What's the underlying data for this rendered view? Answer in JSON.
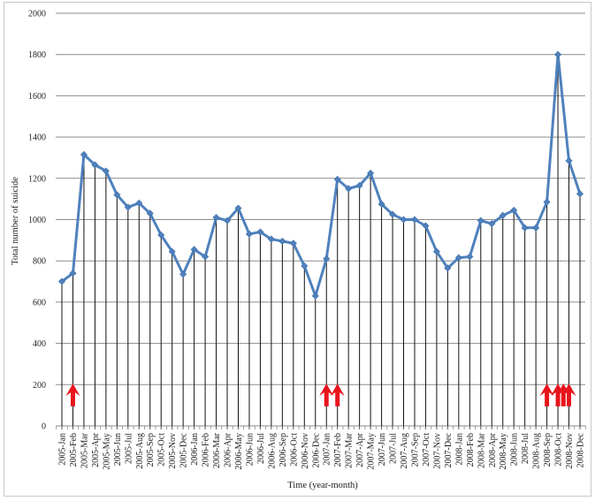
{
  "chart_data": {
    "type": "line",
    "title": "",
    "xlabel": "Time (year-month)",
    "ylabel": "Total number of suicide",
    "ylim": [
      0,
      2000
    ],
    "yticks": [
      0,
      200,
      400,
      600,
      800,
      1000,
      1200,
      1400,
      1600,
      1800,
      2000
    ],
    "grid": "horizontal",
    "legend": null,
    "drop_lines": true,
    "categories": [
      "2005-Jan",
      "2005-Feb",
      "2005-Mar",
      "2005-Apr",
      "2005-May",
      "2005-Jun",
      "2005-Jul",
      "2005-Aug",
      "2005-Sep",
      "2005-Oct",
      "2005-Nov",
      "2005-Dec",
      "2006-Jan",
      "2006-Feb",
      "2006-Mar",
      "2006-Apr",
      "2006-May",
      "2006-Jun",
      "2006-Jul",
      "2006-Aug",
      "2006-Sep",
      "2006-Oct",
      "2006-Nov",
      "2006-Dec",
      "2007-Jan",
      "2007-Feb",
      "2007-Mar",
      "2007-Apr",
      "2007-May",
      "2007-Jun",
      "2007-Jul",
      "2007-Aug",
      "2007-Sep",
      "2007-Oct",
      "2007-Nov",
      "2007-Dec",
      "2008-Jan",
      "2008-Feb",
      "2008-Mar",
      "2008-Apr",
      "2008-May",
      "2008-Jun",
      "2008-Jul",
      "2008-Aug",
      "2008-Sep",
      "2008-Oct",
      "2008-Nov",
      "2008-Dec"
    ],
    "series": [
      {
        "name": "Total number of suicide",
        "color": "#4f81bd",
        "values": [
          700,
          740,
          1315,
          1265,
          1235,
          1120,
          1060,
          1080,
          1030,
          925,
          845,
          735,
          855,
          820,
          1010,
          995,
          1055,
          930,
          940,
          905,
          895,
          885,
          775,
          630,
          810,
          1195,
          1150,
          1165,
          1225,
          1075,
          1025,
          1000,
          1000,
          970,
          845,
          765,
          815,
          820,
          995,
          980,
          1020,
          1045,
          960,
          960,
          1085,
          1800,
          1285,
          1125
        ]
      }
    ],
    "annotations": {
      "type": "red-up-arrows",
      "color": "#e8141c",
      "positions": [
        1,
        24,
        25,
        44,
        45,
        45.5,
        46
      ]
    }
  }
}
